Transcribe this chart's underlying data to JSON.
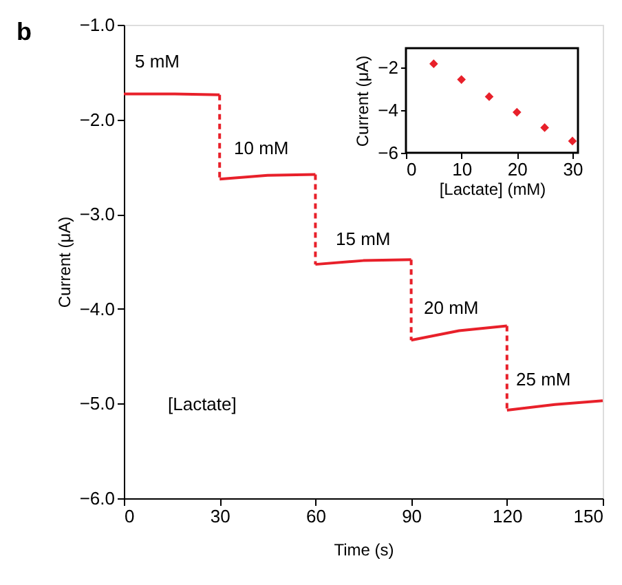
{
  "chart_data": [
    {
      "type": "line",
      "xlabel": "Time (s)",
      "ylabel": "Current (μA)",
      "xlim": [
        0,
        150
      ],
      "ylim": [
        -6,
        -1
      ],
      "xticks": [
        0,
        30,
        60,
        90,
        120,
        150
      ],
      "yticks": [
        {
          "value": -1,
          "label": "−1.0"
        },
        {
          "value": -2,
          "label": "−2.0"
        },
        {
          "value": -3,
          "label": "−3.0"
        },
        {
          "value": -4,
          "label": "−4.0"
        },
        {
          "value": -5,
          "label": "−5.0"
        },
        {
          "value": -6,
          "label": "−6.0"
        }
      ],
      "series": [
        {
          "color": "#e8202a",
          "line_style": "solid",
          "x": [
            0,
            15,
            30
          ],
          "values": [
            -1.73,
            -1.73,
            -1.74
          ]
        },
        {
          "color": "#e8202a",
          "line_style": "dashed",
          "x": [
            30,
            30
          ],
          "values": [
            -1.74,
            -2.63
          ]
        },
        {
          "color": "#e8202a",
          "line_style": "solid",
          "x": [
            30,
            45,
            60
          ],
          "values": [
            -2.63,
            -2.59,
            -2.58
          ]
        },
        {
          "color": "#e8202a",
          "line_style": "dashed",
          "x": [
            60,
            60
          ],
          "values": [
            -2.58,
            -3.53
          ]
        },
        {
          "color": "#e8202a",
          "line_style": "solid",
          "x": [
            60,
            75,
            90
          ],
          "values": [
            -3.53,
            -3.49,
            -3.48
          ]
        },
        {
          "color": "#e8202a",
          "line_style": "dashed",
          "x": [
            90,
            90
          ],
          "values": [
            -3.48,
            -4.33
          ]
        },
        {
          "color": "#e8202a",
          "line_style": "solid",
          "x": [
            90,
            105,
            120
          ],
          "values": [
            -4.33,
            -4.23,
            -4.18
          ]
        },
        {
          "color": "#e8202a",
          "line_style": "dashed",
          "x": [
            120,
            120
          ],
          "values": [
            -4.18,
            -5.07
          ]
        },
        {
          "color": "#e8202a",
          "line_style": "solid",
          "x": [
            120,
            135,
            150
          ],
          "values": [
            -5.07,
            -5.01,
            -4.97
          ]
        }
      ],
      "annotations": [
        "b",
        "[Lactate]",
        "5 mM",
        "10 mM",
        "15 mM",
        "20 mM",
        "25 mM"
      ]
    },
    {
      "type": "scatter",
      "xlabel": "[Lactate] (mM)",
      "ylabel": "Current (μA)",
      "xlim": [
        0,
        31
      ],
      "ylim": [
        -6,
        -1.1
      ],
      "xticks": [
        0,
        10,
        20,
        30
      ],
      "yticks": [
        {
          "value": -2,
          "label": "−2"
        },
        {
          "value": -4,
          "label": "−4"
        },
        {
          "value": -6,
          "label": "−6"
        }
      ],
      "marker": "diamond",
      "series": [
        {
          "color": "#e8202a",
          "x": [
            5,
            10,
            15,
            20,
            25,
            30
          ],
          "values": [
            -1.83,
            -2.57,
            -3.37,
            -4.1,
            -4.82,
            -5.45
          ]
        }
      ]
    }
  ]
}
